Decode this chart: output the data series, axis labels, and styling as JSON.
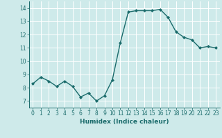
{
  "x": [
    0,
    1,
    2,
    3,
    4,
    5,
    6,
    7,
    8,
    9,
    10,
    11,
    12,
    13,
    14,
    15,
    16,
    17,
    18,
    19,
    20,
    21,
    22,
    23
  ],
  "y": [
    8.3,
    8.8,
    8.5,
    8.1,
    8.5,
    8.1,
    7.3,
    7.6,
    7.0,
    7.4,
    8.6,
    11.4,
    13.7,
    13.8,
    13.8,
    13.8,
    13.9,
    13.3,
    12.2,
    11.8,
    11.6,
    11.0,
    11.1,
    11.0
  ],
  "ylim": [
    6.5,
    14.5
  ],
  "yticks": [
    7,
    8,
    9,
    10,
    11,
    12,
    13,
    14
  ],
  "xlim": [
    -0.5,
    23.5
  ],
  "xticks": [
    0,
    1,
    2,
    3,
    4,
    5,
    6,
    7,
    8,
    9,
    10,
    11,
    12,
    13,
    14,
    15,
    16,
    17,
    18,
    19,
    20,
    21,
    22,
    23
  ],
  "xlabel": "Humidex (Indice chaleur)",
  "line_color": "#1a6b6b",
  "marker": "D",
  "marker_size": 2.0,
  "bg_color": "#ceeaea",
  "grid_color": "#ffffff",
  "tick_color": "#1a6b6b",
  "label_color": "#1a6b6b",
  "line_width": 1.0,
  "tick_fontsize": 5.5,
  "xlabel_fontsize": 6.5
}
